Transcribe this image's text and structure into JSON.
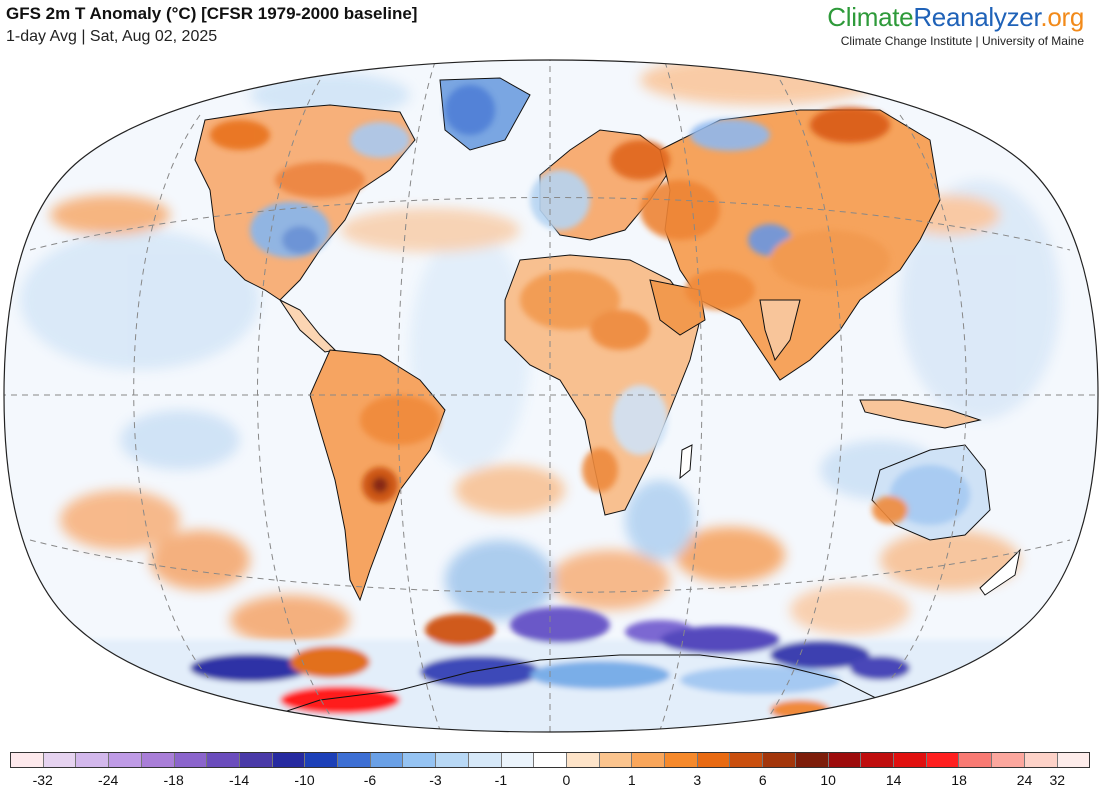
{
  "header": {
    "title": "GFS 2m T Anomaly (°C) [CFSR 1979-2000 baseline]",
    "subtitle": "1-day Avg | Sat, Aug 02, 2025"
  },
  "branding": {
    "logo_part1": "Climate",
    "logo_part2": "Reanalyzer",
    "logo_part3": ".org",
    "tagline": "Climate Change Institute | University of Maine"
  },
  "colorbar": {
    "colors": [
      "#fde9ec",
      "#e6d3f0",
      "#d3b8ec",
      "#bf9be6",
      "#a97ed8",
      "#8b64cc",
      "#6b4dbd",
      "#4a3aa8",
      "#262aa0",
      "#1c40b8",
      "#3d6fd4",
      "#6aa0e6",
      "#95c3f2",
      "#b8d8f5",
      "#d6e8f8",
      "#ebf4fc",
      "#ffffff",
      "#fde3c8",
      "#fbc48e",
      "#f9a65b",
      "#f6892b",
      "#e86a12",
      "#c94f0e",
      "#a3360b",
      "#7d1d0a",
      "#9d0b0b",
      "#bf0d0d",
      "#e0100f",
      "#ff1f1f",
      "#f87a73",
      "#fca79e",
      "#fdd2c8",
      "#fdecea"
    ],
    "tick_labels": [
      "-32",
      "-24",
      "-18",
      "-14",
      "-10",
      "-6",
      "-3",
      "-1",
      "0",
      "1",
      "3",
      "6",
      "10",
      "14",
      "18",
      "24",
      "32"
    ]
  },
  "map": {
    "projection": "Winkel Tripel (world)",
    "land_color": "#ffffff",
    "graticule": "dashed gray"
  }
}
